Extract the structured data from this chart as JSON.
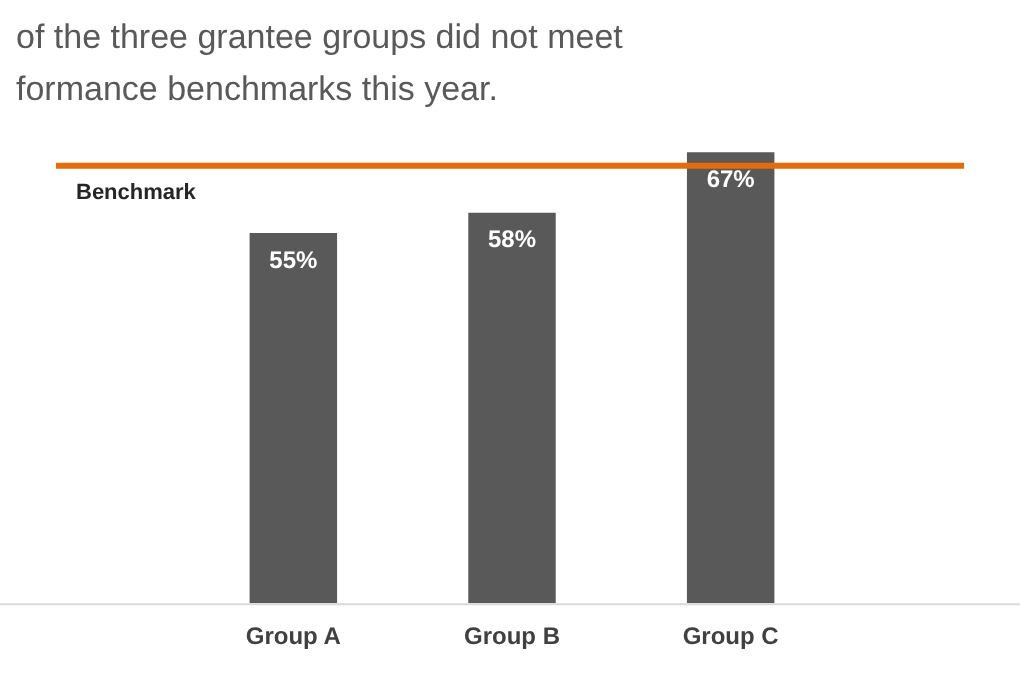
{
  "chart_data": {
    "type": "bar",
    "title": "of the three grantee groups did not meet formance benchmarks this year.",
    "categories": [
      "Group A",
      "Group B",
      "Group C"
    ],
    "values": [
      55,
      58,
      67
    ],
    "value_labels": [
      "55%",
      "58%",
      "67%"
    ],
    "color": "#595959",
    "grid": false,
    "legend": false,
    "ref_lines": [
      {
        "axis": "y",
        "value": 65,
        "label": "Benchmark",
        "color": "#e46c0a"
      }
    ]
  }
}
